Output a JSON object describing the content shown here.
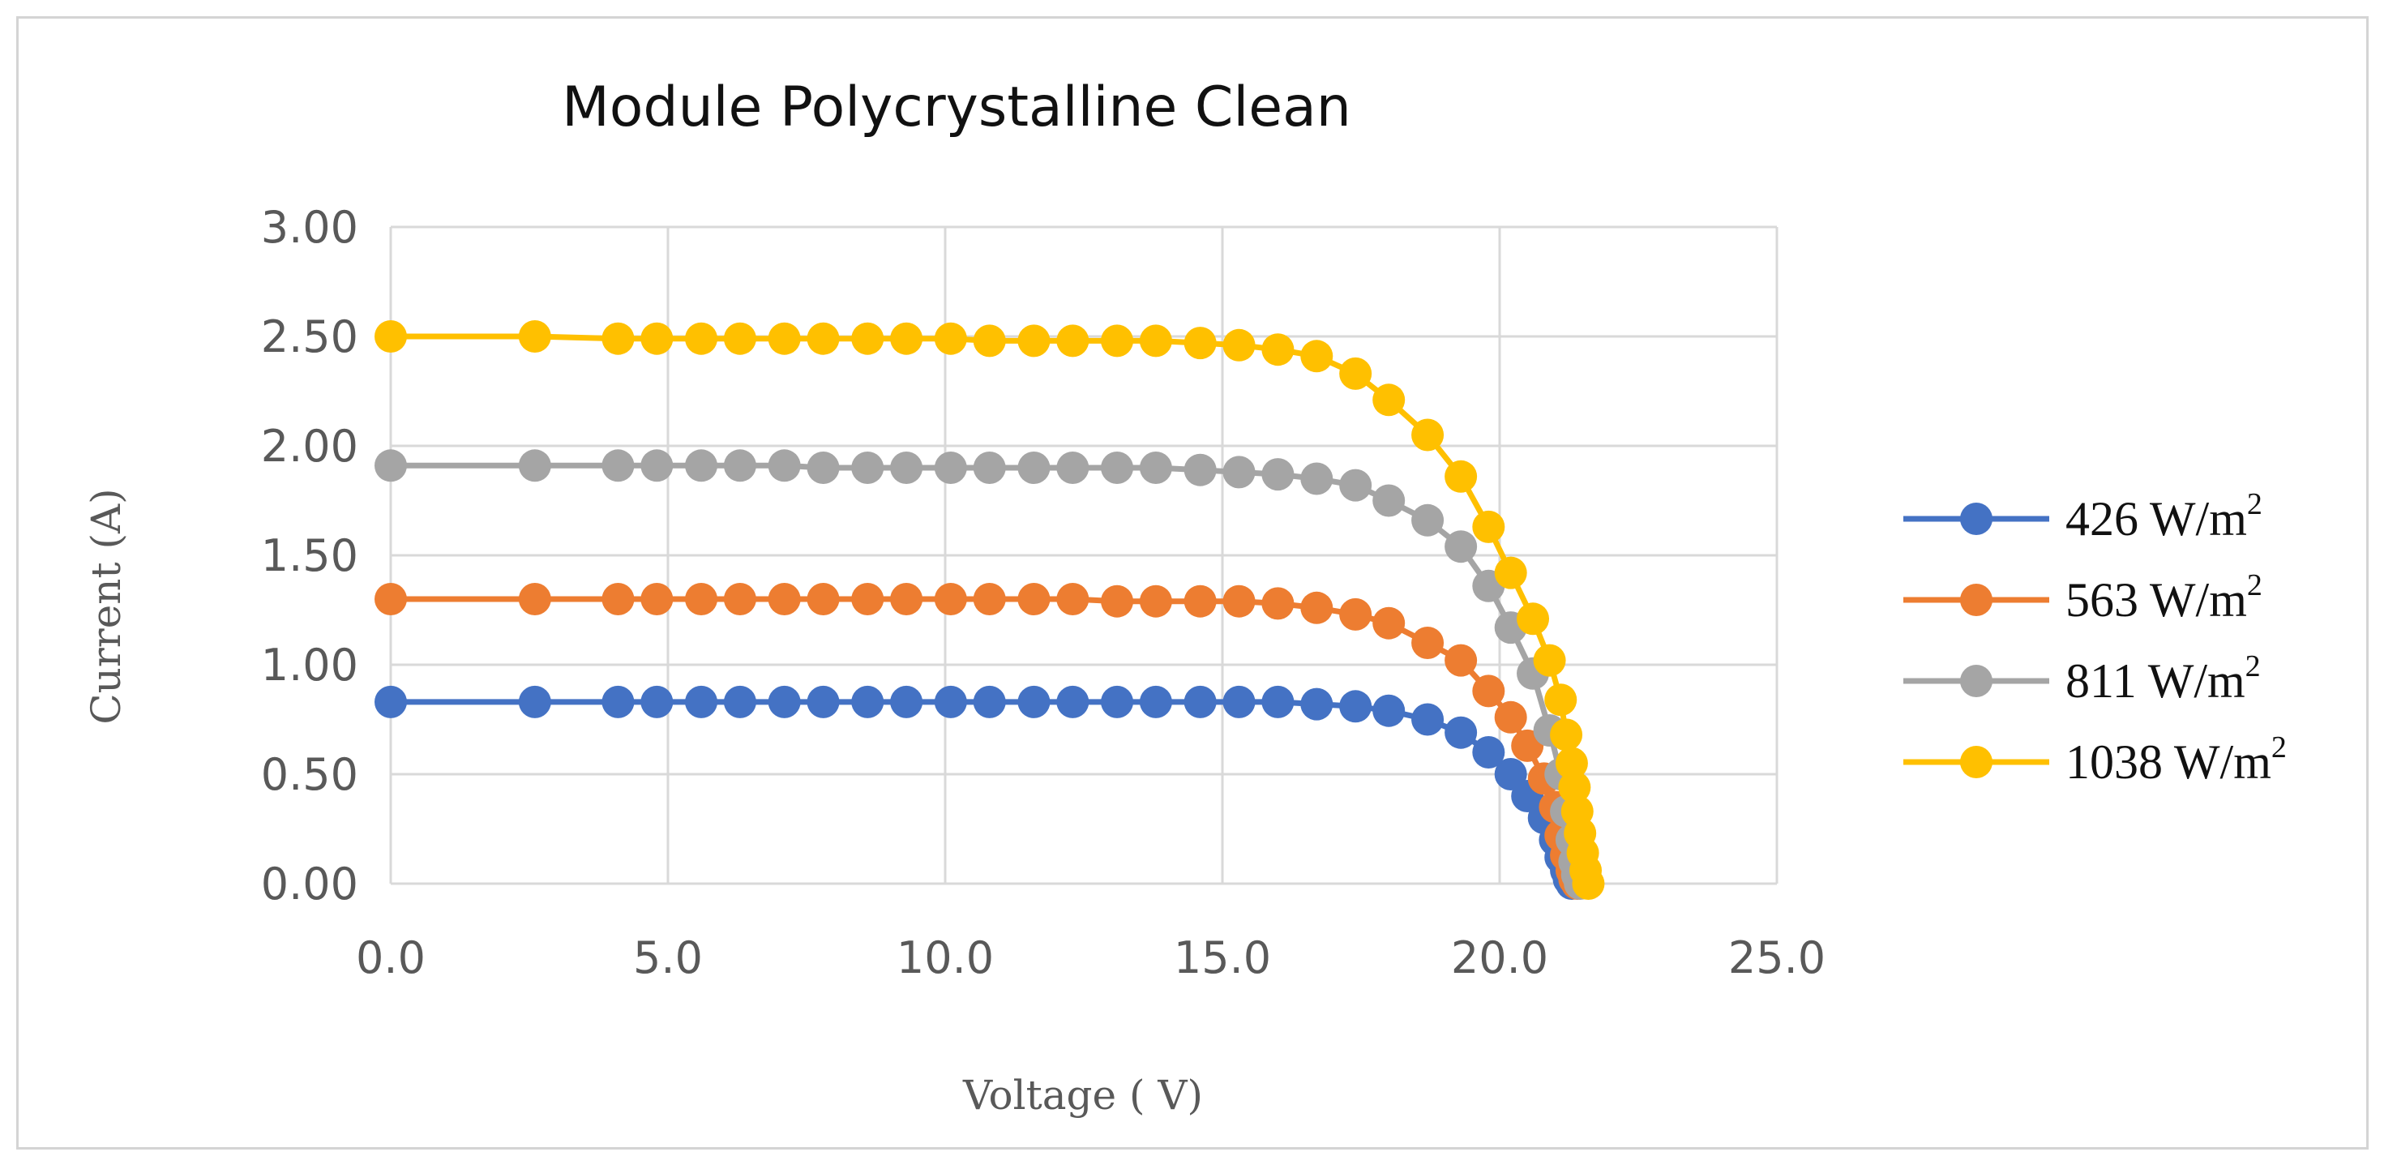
{
  "chart_data": {
    "type": "scatter",
    "title": "Module Polycrystalline Clean",
    "xlabel": "Voltage ( V)",
    "ylabel": "Current (A)",
    "xlim": [
      0,
      25
    ],
    "ylim": [
      0,
      3
    ],
    "x_ticks": [
      "0.0",
      "5.0",
      "10.0",
      "15.0",
      "20.0",
      "25.0"
    ],
    "y_ticks": [
      "0.00",
      "0.50",
      "1.00",
      "1.50",
      "2.00",
      "2.50",
      "3.00"
    ],
    "grid": true,
    "legend_position": "right",
    "lines_with_markers": true,
    "series": [
      {
        "name": "426 W/m2",
        "legend_main": "426 W/m",
        "legend_sup": "2",
        "color": "#4472C4",
        "points": [
          [
            0.0,
            0.83
          ],
          [
            2.6,
            0.83
          ],
          [
            4.1,
            0.83
          ],
          [
            4.8,
            0.83
          ],
          [
            5.6,
            0.83
          ],
          [
            6.3,
            0.83
          ],
          [
            7.1,
            0.83
          ],
          [
            7.8,
            0.83
          ],
          [
            8.6,
            0.83
          ],
          [
            9.3,
            0.83
          ],
          [
            10.1,
            0.83
          ],
          [
            10.8,
            0.83
          ],
          [
            11.6,
            0.83
          ],
          [
            12.3,
            0.83
          ],
          [
            13.1,
            0.83
          ],
          [
            13.8,
            0.83
          ],
          [
            14.6,
            0.83
          ],
          [
            15.3,
            0.83
          ],
          [
            16.0,
            0.83
          ],
          [
            16.7,
            0.82
          ],
          [
            17.4,
            0.81
          ],
          [
            18.0,
            0.79
          ],
          [
            18.7,
            0.75
          ],
          [
            19.3,
            0.69
          ],
          [
            19.8,
            0.6
          ],
          [
            20.2,
            0.5
          ],
          [
            20.5,
            0.4
          ],
          [
            20.8,
            0.3
          ],
          [
            21.0,
            0.2
          ],
          [
            21.1,
            0.12
          ],
          [
            21.2,
            0.06
          ],
          [
            21.25,
            0.02
          ],
          [
            21.3,
            0.0
          ]
        ]
      },
      {
        "name": "563 W/m2",
        "legend_main": "563 W/m",
        "legend_sup": "2",
        "color": "#ED7D31",
        "points": [
          [
            0.0,
            1.3
          ],
          [
            2.6,
            1.3
          ],
          [
            4.1,
            1.3
          ],
          [
            4.8,
            1.3
          ],
          [
            5.6,
            1.3
          ],
          [
            6.3,
            1.3
          ],
          [
            7.1,
            1.3
          ],
          [
            7.8,
            1.3
          ],
          [
            8.6,
            1.3
          ],
          [
            9.3,
            1.3
          ],
          [
            10.1,
            1.3
          ],
          [
            10.8,
            1.3
          ],
          [
            11.6,
            1.3
          ],
          [
            12.3,
            1.3
          ],
          [
            13.1,
            1.29
          ],
          [
            13.8,
            1.29
          ],
          [
            14.6,
            1.29
          ],
          [
            15.3,
            1.29
          ],
          [
            16.0,
            1.28
          ],
          [
            16.7,
            1.26
          ],
          [
            17.4,
            1.23
          ],
          [
            18.0,
            1.19
          ],
          [
            18.7,
            1.1
          ],
          [
            19.3,
            1.02
          ],
          [
            19.8,
            0.88
          ],
          [
            20.2,
            0.76
          ],
          [
            20.5,
            0.63
          ],
          [
            20.8,
            0.48
          ],
          [
            21.0,
            0.35
          ],
          [
            21.1,
            0.22
          ],
          [
            21.2,
            0.13
          ],
          [
            21.3,
            0.06
          ],
          [
            21.35,
            0.02
          ],
          [
            21.4,
            0.0
          ]
        ]
      },
      {
        "name": "811 W/m2",
        "legend_main": "811 W/m",
        "legend_sup": "2",
        "color": "#A5A5A5",
        "points": [
          [
            0.0,
            1.91
          ],
          [
            2.6,
            1.91
          ],
          [
            4.1,
            1.91
          ],
          [
            4.8,
            1.91
          ],
          [
            5.6,
            1.91
          ],
          [
            6.3,
            1.91
          ],
          [
            7.1,
            1.91
          ],
          [
            7.8,
            1.9
          ],
          [
            8.6,
            1.9
          ],
          [
            9.3,
            1.9
          ],
          [
            10.1,
            1.9
          ],
          [
            10.8,
            1.9
          ],
          [
            11.6,
            1.9
          ],
          [
            12.3,
            1.9
          ],
          [
            13.1,
            1.9
          ],
          [
            13.8,
            1.9
          ],
          [
            14.6,
            1.89
          ],
          [
            15.3,
            1.88
          ],
          [
            16.0,
            1.87
          ],
          [
            16.7,
            1.85
          ],
          [
            17.4,
            1.82
          ],
          [
            18.0,
            1.75
          ],
          [
            18.7,
            1.66
          ],
          [
            19.3,
            1.54
          ],
          [
            19.8,
            1.36
          ],
          [
            20.2,
            1.17
          ],
          [
            20.6,
            0.96
          ],
          [
            20.9,
            0.7
          ],
          [
            21.1,
            0.5
          ],
          [
            21.2,
            0.33
          ],
          [
            21.3,
            0.2
          ],
          [
            21.35,
            0.1
          ],
          [
            21.4,
            0.04
          ],
          [
            21.45,
            0.0
          ]
        ]
      },
      {
        "name": "1038 W/m2",
        "legend_main": "1038 W/m",
        "legend_sup": "2",
        "color": "#FFC000",
        "points": [
          [
            0.0,
            2.5
          ],
          [
            2.6,
            2.5
          ],
          [
            4.1,
            2.49
          ],
          [
            4.8,
            2.49
          ],
          [
            5.6,
            2.49
          ],
          [
            6.3,
            2.49
          ],
          [
            7.1,
            2.49
          ],
          [
            7.8,
            2.49
          ],
          [
            8.6,
            2.49
          ],
          [
            9.3,
            2.49
          ],
          [
            10.1,
            2.49
          ],
          [
            10.8,
            2.48
          ],
          [
            11.6,
            2.48
          ],
          [
            12.3,
            2.48
          ],
          [
            13.1,
            2.48
          ],
          [
            13.8,
            2.48
          ],
          [
            14.6,
            2.47
          ],
          [
            15.3,
            2.46
          ],
          [
            16.0,
            2.44
          ],
          [
            16.7,
            2.41
          ],
          [
            17.4,
            2.33
          ],
          [
            18.0,
            2.21
          ],
          [
            18.7,
            2.05
          ],
          [
            19.3,
            1.86
          ],
          [
            19.8,
            1.63
          ],
          [
            20.2,
            1.42
          ],
          [
            20.6,
            1.21
          ],
          [
            20.9,
            1.02
          ],
          [
            21.1,
            0.84
          ],
          [
            21.2,
            0.68
          ],
          [
            21.3,
            0.55
          ],
          [
            21.35,
            0.44
          ],
          [
            21.4,
            0.33
          ],
          [
            21.45,
            0.23
          ],
          [
            21.5,
            0.14
          ],
          [
            21.55,
            0.06
          ],
          [
            21.6,
            0.0
          ]
        ]
      }
    ]
  }
}
